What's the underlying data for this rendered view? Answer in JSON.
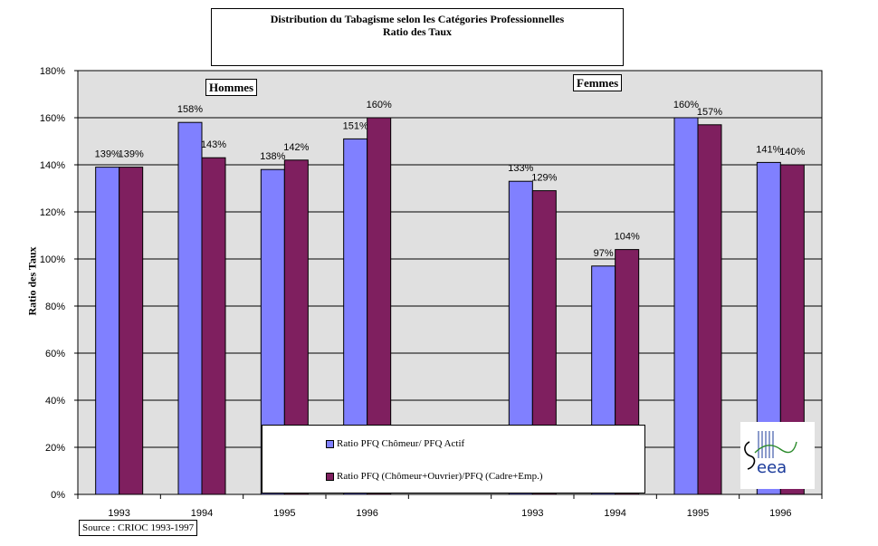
{
  "title_lines": [
    "Distribution du Tabagisme selon les Catégories Professionnelles",
    "Ratio des Taux"
  ],
  "ylabel": "Ratio des Taux",
  "source": "Source : CRIOC 1993-1997",
  "groups": [
    "Hommes",
    "Femmes"
  ],
  "colors": {
    "plot_bg": "#e0e0e0",
    "series1": "#8080ff",
    "series2": "#7f1f5f"
  },
  "chart_data": {
    "type": "bar",
    "categories": [
      "1993",
      "1994",
      "1995",
      "1996",
      "1993",
      "1994",
      "1995",
      "1996"
    ],
    "category_groups": [
      "Hommes",
      "Hommes",
      "Hommes",
      "Hommes",
      "Femmes",
      "Femmes",
      "Femmes",
      "Femmes"
    ],
    "series": [
      {
        "name": "Ratio PFQ Chômeur/ PFQ Actif",
        "values": [
          139,
          158,
          138,
          151,
          133,
          97,
          160,
          141
        ],
        "labels": [
          "139%",
          "158%",
          "138%",
          "151%",
          "133%",
          "97%",
          "160%",
          "141%"
        ]
      },
      {
        "name": "Ratio PFQ (Chômeur+Ouvrier)/PFQ (Cadre+Emp.)",
        "values": [
          139,
          143,
          142,
          160,
          129,
          104,
          157,
          140
        ],
        "labels": [
          "139%",
          "143%",
          "142%",
          "160%",
          "129%",
          "104%",
          "157%",
          "140%"
        ]
      }
    ],
    "ylim": [
      0,
      180
    ],
    "yticks": [
      "0%",
      "20%",
      "40%",
      "60%",
      "80%",
      "100%",
      "120%",
      "140%",
      "160%",
      "180%"
    ],
    "grid": true,
    "legend_position": "bottom-center"
  }
}
